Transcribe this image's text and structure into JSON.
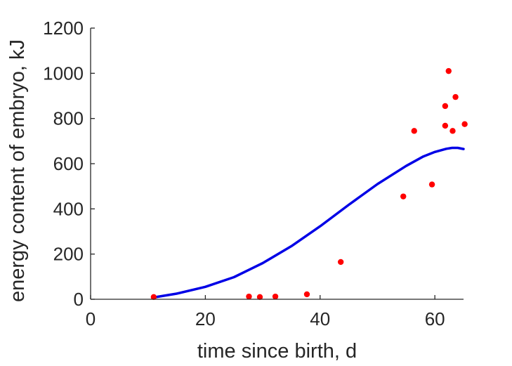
{
  "chart_data": {
    "type": "scatter",
    "title": "",
    "xlabel": "time since birth, d",
    "ylabel": "energy content of embryo, kJ",
    "xlim": [
      0,
      65
    ],
    "ylim": [
      0,
      1200
    ],
    "xticks": [
      0,
      20,
      40,
      60
    ],
    "yticks": [
      0,
      200,
      400,
      600,
      800,
      1000,
      1200
    ],
    "xtick_labels": [
      "0",
      "20",
      "40",
      "60"
    ],
    "ytick_labels": [
      "0",
      "200",
      "400",
      "600",
      "800",
      "1000",
      "1200"
    ],
    "grid": false,
    "legend": "none",
    "axis_color": "#262626",
    "series": [
      {
        "kind": "scatter",
        "color": "#ff0000",
        "x": [
          11,
          27.6,
          29.5,
          32.2,
          37.7,
          43.6,
          54.5,
          56.4,
          59.5,
          61.8,
          61.8,
          62.4,
          63.1,
          63.6,
          65.2
        ],
        "y": [
          10,
          12,
          10,
          12,
          22,
          165,
          455,
          745,
          508,
          768,
          855,
          1010,
          745,
          895,
          775
        ]
      },
      {
        "kind": "line",
        "color": "#0000e6",
        "x": [
          11,
          15,
          20,
          25,
          30,
          35,
          40,
          45,
          50,
          55,
          58,
          60,
          62,
          63,
          64,
          65
        ],
        "y": [
          8,
          25,
          55,
          98,
          160,
          235,
          323,
          418,
          510,
          590,
          632,
          652,
          666,
          670,
          670,
          665
        ]
      }
    ]
  }
}
